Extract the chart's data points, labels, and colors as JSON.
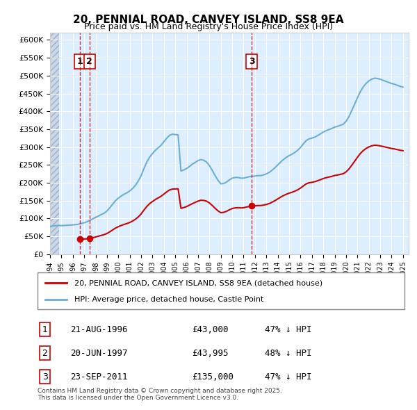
{
  "title": "20, PENNIAL ROAD, CANVEY ISLAND, SS8 9EA",
  "subtitle": "Price paid vs. HM Land Registry's House Price Index (HPI)",
  "ylabel": "",
  "ylim": [
    0,
    620000
  ],
  "yticks": [
    0,
    50000,
    100000,
    150000,
    200000,
    250000,
    300000,
    350000,
    400000,
    450000,
    500000,
    550000,
    600000
  ],
  "ytick_labels": [
    "£0",
    "£50K",
    "£100K",
    "£150K",
    "£200K",
    "£250K",
    "£300K",
    "£350K",
    "£400K",
    "£450K",
    "£500K",
    "£550K",
    "£600K"
  ],
  "xlim_start": 1994.0,
  "xlim_end": 2025.5,
  "hpi_color": "#6baed6",
  "price_color": "#cc0000",
  "sale_marker_color": "#cc0000",
  "dashed_line_color": "#cc0000",
  "background_plot": "#ddeeff",
  "background_hatch": "#c8d8e8",
  "legend_line1": "20, PENNIAL ROAD, CANVEY ISLAND, SS8 9EA (detached house)",
  "legend_line2": "HPI: Average price, detached house, Castle Point",
  "transactions": [
    {
      "num": 1,
      "date_str": "21-AUG-1996",
      "year": 1996.64,
      "price": 43000,
      "label": "21-AUG-1996",
      "price_label": "£43,000",
      "hpi_pct": "47% ↓ HPI"
    },
    {
      "num": 2,
      "date_str": "20-JUN-1997",
      "year": 1997.47,
      "price": 43995,
      "label": "20-JUN-1997",
      "price_label": "£43,995",
      "hpi_pct": "48% ↓ HPI"
    },
    {
      "num": 3,
      "date_str": "23-SEP-2011",
      "year": 2011.73,
      "price": 135000,
      "label": "23-SEP-2011",
      "price_label": "£135,000",
      "hpi_pct": "47% ↓ HPI"
    }
  ],
  "footer": "Contains HM Land Registry data © Crown copyright and database right 2025.\nThis data is licensed under the Open Government Licence v3.0.",
  "hpi_data_x": [
    1994.0,
    1994.25,
    1994.5,
    1994.75,
    1995.0,
    1995.25,
    1995.5,
    1995.75,
    1996.0,
    1996.25,
    1996.5,
    1996.75,
    1997.0,
    1997.25,
    1997.5,
    1997.75,
    1998.0,
    1998.25,
    1998.5,
    1998.75,
    1999.0,
    1999.25,
    1999.5,
    1999.75,
    2000.0,
    2000.25,
    2000.5,
    2000.75,
    2001.0,
    2001.25,
    2001.5,
    2001.75,
    2002.0,
    2002.25,
    2002.5,
    2002.75,
    2003.0,
    2003.25,
    2003.5,
    2003.75,
    2004.0,
    2004.25,
    2004.5,
    2004.75,
    2005.0,
    2005.25,
    2005.5,
    2005.75,
    2006.0,
    2006.25,
    2006.5,
    2006.75,
    2007.0,
    2007.25,
    2007.5,
    2007.75,
    2008.0,
    2008.25,
    2008.5,
    2008.75,
    2009.0,
    2009.25,
    2009.5,
    2009.75,
    2010.0,
    2010.25,
    2010.5,
    2010.75,
    2011.0,
    2011.25,
    2011.5,
    2011.75,
    2012.0,
    2012.25,
    2012.5,
    2012.75,
    2013.0,
    2013.25,
    2013.5,
    2013.75,
    2014.0,
    2014.25,
    2014.5,
    2014.75,
    2015.0,
    2015.25,
    2015.5,
    2015.75,
    2016.0,
    2016.25,
    2016.5,
    2016.75,
    2017.0,
    2017.25,
    2017.5,
    2017.75,
    2018.0,
    2018.25,
    2018.5,
    2018.75,
    2019.0,
    2019.25,
    2019.5,
    2019.75,
    2020.0,
    2020.25,
    2020.5,
    2020.75,
    2021.0,
    2021.25,
    2021.5,
    2021.75,
    2022.0,
    2022.25,
    2022.5,
    2022.75,
    2023.0,
    2023.25,
    2023.5,
    2023.75,
    2024.0,
    2024.25,
    2024.5,
    2024.75,
    2025.0
  ],
  "hpi_data_y": [
    78000,
    79000,
    80000,
    80500,
    80000,
    80500,
    81000,
    81500,
    82000,
    83000,
    84000,
    86000,
    88000,
    91000,
    95000,
    99000,
    103000,
    107000,
    111000,
    115000,
    121000,
    130000,
    140000,
    150000,
    157000,
    163000,
    168000,
    172000,
    177000,
    184000,
    193000,
    205000,
    220000,
    240000,
    258000,
    272000,
    282000,
    291000,
    298000,
    305000,
    315000,
    325000,
    333000,
    336000,
    335000,
    334000,
    233000,
    236000,
    240000,
    246000,
    252000,
    257000,
    262000,
    265000,
    263000,
    258000,
    248000,
    235000,
    220000,
    207000,
    197000,
    198000,
    202000,
    208000,
    213000,
    215000,
    215000,
    213000,
    213000,
    215000,
    217000,
    218000,
    219000,
    220000,
    220000,
    222000,
    225000,
    229000,
    235000,
    242000,
    250000,
    258000,
    265000,
    271000,
    276000,
    280000,
    285000,
    291000,
    299000,
    309000,
    318000,
    323000,
    325000,
    328000,
    332000,
    337000,
    342000,
    346000,
    349000,
    352000,
    356000,
    358000,
    361000,
    364000,
    372000,
    385000,
    402000,
    420000,
    438000,
    455000,
    468000,
    478000,
    485000,
    490000,
    493000,
    492000,
    490000,
    487000,
    484000,
    481000,
    478000,
    476000,
    473000,
    470000,
    468000
  ],
  "price_data_x": [
    1996.64,
    1997.47,
    2011.73
  ],
  "price_data_y": [
    43000,
    43995,
    135000
  ]
}
